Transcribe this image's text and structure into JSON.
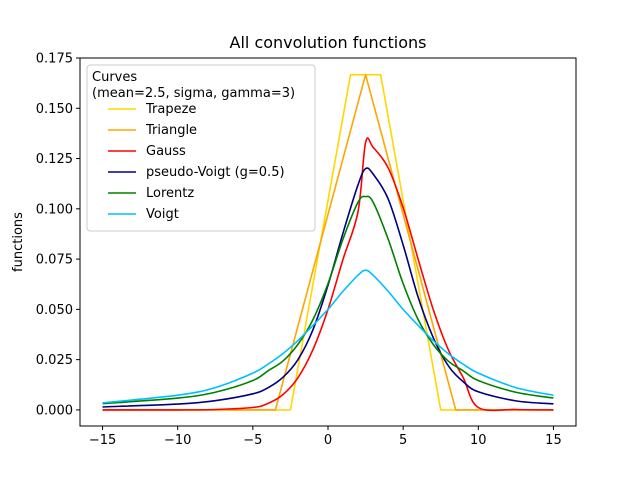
{
  "chart_data": {
    "type": "line",
    "title": "All convolution functions",
    "xlabel": "",
    "ylabel": "functions",
    "xlim": [
      -16.5,
      16.5
    ],
    "ylim": [
      -0.008,
      0.175
    ],
    "x_ticks": [
      -15,
      -10,
      -5,
      0,
      5,
      10,
      15
    ],
    "x_tick_labels": [
      "−15",
      "−10",
      "−5",
      "0",
      "5",
      "10",
      "15"
    ],
    "y_ticks": [
      0.0,
      0.025,
      0.05,
      0.075,
      0.1,
      0.125,
      0.15,
      0.175
    ],
    "y_tick_labels": [
      "0.000",
      "0.025",
      "0.050",
      "0.075",
      "0.100",
      "0.125",
      "0.150",
      "0.175"
    ],
    "grid": false,
    "legend": {
      "placement": "top-left",
      "title_line1": "Curves",
      "title_line2": "(mean=2.5, sigma, gamma=3)"
    },
    "series": [
      {
        "name": "Trapeze",
        "color": "#FFD700",
        "x": [
          -15,
          -2.5,
          1.5,
          3.5,
          7.5,
          15
        ],
        "y": [
          0,
          0,
          0.1667,
          0.1667,
          0,
          0
        ]
      },
      {
        "name": "Triangle",
        "color": "#FFA500",
        "x": [
          -15,
          -3.5,
          2.5,
          8.5,
          15
        ],
        "y": [
          0,
          0,
          0.1667,
          0,
          0
        ]
      },
      {
        "name": "Gauss",
        "color": "#FF0000",
        "x": [
          -15,
          -10,
          -7.5,
          -5,
          -4,
          -3,
          -2,
          -1,
          0,
          1,
          2,
          2.5,
          3,
          4,
          5,
          6,
          7,
          8,
          9,
          10,
          12.5,
          15
        ],
        "y": [
          0.0,
          0.0,
          0.0002,
          0.0012,
          0.0032,
          0.0076,
          0.016,
          0.03,
          0.05,
          0.0749,
          0.0987,
          0.133,
          0.1306,
          0.1204,
          0.1005,
          0.0749,
          0.05,
          0.03,
          0.016,
          0.0012,
          0.0002,
          0.0
        ],
        "y_note": "peak 0.133 at x=2.5"
      },
      {
        "name": "pseudo-Voigt (g=0.5)",
        "color": "#000080",
        "x": [
          -15,
          -10,
          -7.5,
          -5,
          -4,
          -3,
          -2,
          -1,
          0,
          1,
          2,
          2.5,
          3,
          4,
          5,
          6,
          7,
          8,
          9,
          10,
          12.5,
          15
        ],
        "y": [
          0.0015,
          0.0029,
          0.0046,
          0.008,
          0.011,
          0.0162,
          0.025,
          0.0399,
          0.062,
          0.088,
          0.112,
          0.12,
          0.1173,
          0.105,
          0.082,
          0.056,
          0.036,
          0.022,
          0.014,
          0.009,
          0.0045,
          0.003
        ]
      },
      {
        "name": "Lorentz",
        "color": "#008000",
        "x": [
          -15,
          -10,
          -7.5,
          -5,
          -4,
          -3,
          -2,
          -1,
          0,
          1,
          2,
          2.5,
          3,
          4,
          5,
          6,
          7,
          8,
          9,
          10,
          12.5,
          15
        ],
        "y": [
          0.0031,
          0.0059,
          0.0088,
          0.0146,
          0.0194,
          0.0243,
          0.0326,
          0.0449,
          0.0628,
          0.085,
          0.1033,
          0.1061,
          0.1033,
          0.085,
          0.0628,
          0.0449,
          0.0326,
          0.0243,
          0.0194,
          0.0146,
          0.0088,
          0.0059
        ]
      },
      {
        "name": "Voigt",
        "color": "#00BFFF",
        "x": [
          -15,
          -10,
          -7.5,
          -5,
          -4,
          -3,
          -2,
          -1,
          0,
          1,
          2,
          2.5,
          3,
          4,
          5,
          6,
          7,
          8,
          9,
          10,
          12.5,
          15
        ],
        "y": [
          0.0035,
          0.0073,
          0.0111,
          0.0183,
          0.0227,
          0.028,
          0.0345,
          0.042,
          0.05,
          0.059,
          0.067,
          0.0695,
          0.067,
          0.059,
          0.05,
          0.042,
          0.0345,
          0.028,
          0.0227,
          0.0183,
          0.0111,
          0.0073
        ]
      }
    ]
  }
}
